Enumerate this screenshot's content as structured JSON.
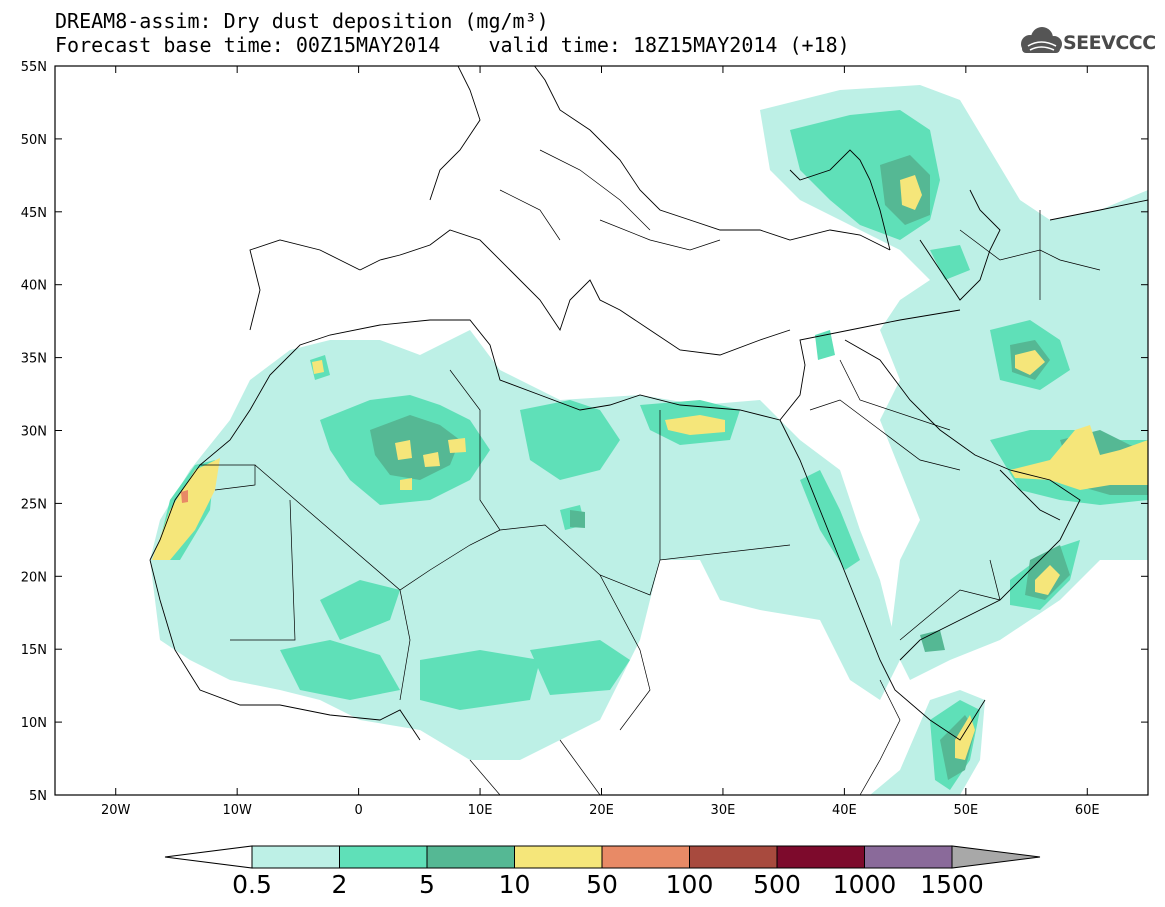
{
  "title_line1": "DREAM8-assim: Dry dust deposition (mg/m³)",
  "title_line2": "Forecast base time: 00Z15MAY2014    valid time: 18Z15MAY2014 (+18)",
  "logo_text": "SEEVCCC",
  "logo_icon": "cloud-logo-icon",
  "map": {
    "lon_range": [
      -25,
      65
    ],
    "lat_range": [
      5,
      55
    ],
    "lon_ticks": [
      {
        "value": -20,
        "label": "20W"
      },
      {
        "value": -10,
        "label": "10W"
      },
      {
        "value": 0,
        "label": "0"
      },
      {
        "value": 10,
        "label": "10E"
      },
      {
        "value": 20,
        "label": "20E"
      },
      {
        "value": 30,
        "label": "30E"
      },
      {
        "value": 40,
        "label": "40E"
      },
      {
        "value": 50,
        "label": "50E"
      },
      {
        "value": 60,
        "label": "60E"
      }
    ],
    "lat_ticks": [
      {
        "value": 55,
        "label": "55N"
      },
      {
        "value": 50,
        "label": "50N"
      },
      {
        "value": 45,
        "label": "45N"
      },
      {
        "value": 40,
        "label": "40N"
      },
      {
        "value": 35,
        "label": "35N"
      },
      {
        "value": 30,
        "label": "30N"
      },
      {
        "value": 25,
        "label": "25N"
      },
      {
        "value": 20,
        "label": "20N"
      },
      {
        "value": 15,
        "label": "15N"
      },
      {
        "value": 10,
        "label": "10N"
      },
      {
        "value": 5,
        "label": "5N"
      }
    ]
  },
  "colorbar": {
    "colors": [
      "#bdf0e6",
      "#5fe0b8",
      "#55b894",
      "#f5e67a",
      "#e88a66",
      "#a84a3e",
      "#7d0a2c",
      "#8a6a9a"
    ],
    "under_color": "#ffffff",
    "over_color": "#a8a8a8",
    "labels": [
      "0.5",
      "2",
      "5",
      "10",
      "50",
      "100",
      "500",
      "1000",
      "1500"
    ]
  },
  "dust_levels": {
    "light": "#bdf0e6",
    "medium": "#5fe0b8",
    "dark": "#55b894",
    "high": "#f5e67a",
    "peak": "#e88a66"
  }
}
